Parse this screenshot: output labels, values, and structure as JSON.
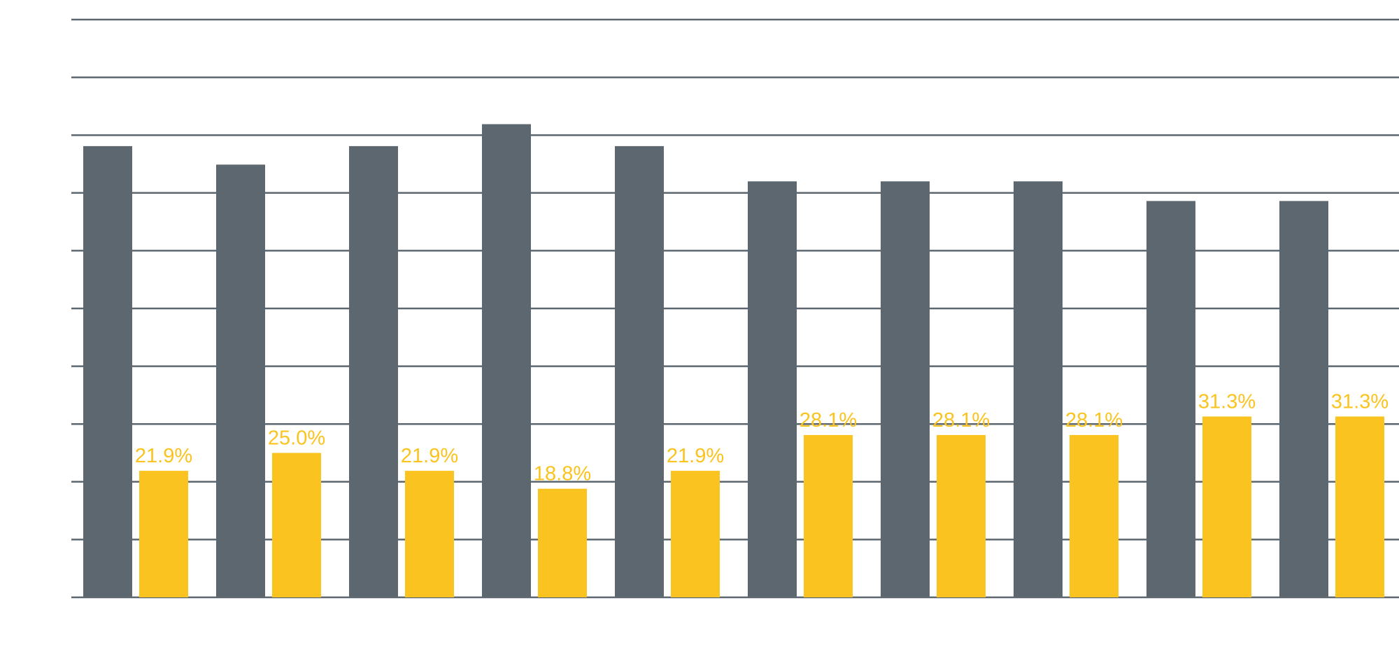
{
  "chart_data": {
    "type": "bar",
    "categories": [
      "",
      "",
      "",
      "",
      "",
      "",
      "",
      "",
      "",
      ""
    ],
    "series": [
      {
        "values": [
          78.1,
          74.9,
          78.1,
          81.9,
          78.1,
          72.0,
          72.0,
          72.0,
          68.6,
          68.6
        ],
        "color": "#5c6770"
      },
      {
        "values": [
          21.9,
          25.0,
          21.9,
          18.8,
          21.9,
          28.1,
          28.1,
          28.1,
          31.3,
          31.3
        ],
        "labels": [
          "21.9%",
          "25.0%",
          "21.9%",
          "18.8%",
          "21.9%",
          "28.1%",
          "28.1%",
          "28.1%",
          "31.3%",
          "31.3%"
        ],
        "color": "#fbc31f"
      }
    ],
    "ylim": [
      0,
      100
    ],
    "grid": true,
    "legend": "none",
    "colors": {
      "grid": "#5c6770",
      "background": "#ffffff"
    }
  }
}
